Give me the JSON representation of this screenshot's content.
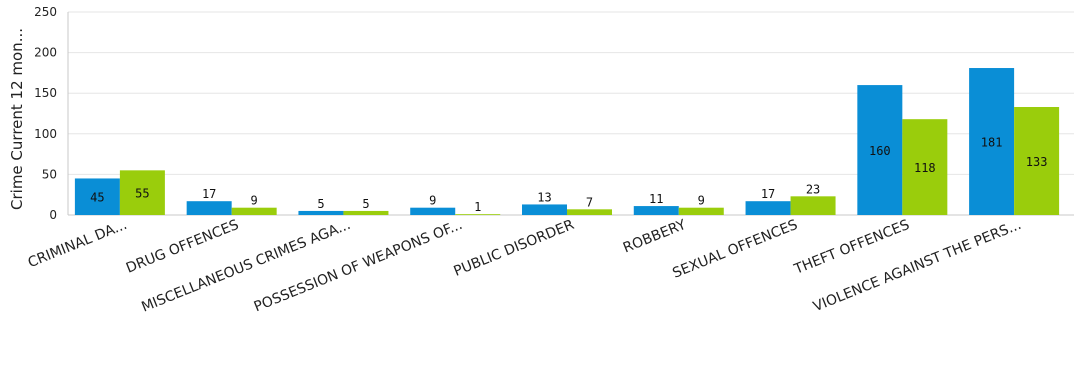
{
  "chart_data": {
    "type": "bar",
    "categories": [
      "CRIMINAL DA...",
      "DRUG OFFENCES",
      "MISCELLANEOUS CRIMES AGA...",
      "POSSESSION OF WEAPONS OF...",
      "PUBLIC DISORDER",
      "ROBBERY",
      "SEXUAL OFFENCES",
      "THEFT OFFENCES",
      "VIOLENCE AGAINST THE PERS..."
    ],
    "series": [
      {
        "values": [
          45,
          17,
          5,
          9,
          13,
          11,
          17,
          160,
          181
        ],
        "color": "#0A8ED6"
      },
      {
        "values": [
          55,
          9,
          5,
          1,
          7,
          9,
          23,
          118,
          133
        ],
        "color": "#9ACD0C"
      }
    ],
    "data_labels": {
      "series0": [
        "45",
        "17",
        "5",
        "9",
        "13",
        "11",
        "17",
        "160",
        "181"
      ],
      "series1": [
        "55",
        "9",
        "5",
        "1",
        "7",
        "9",
        "23",
        "118",
        "133"
      ]
    },
    "ylabel": "Crime Current 12 mon...",
    "yticks": [
      "0",
      "50",
      "100",
      "150",
      "200",
      "250"
    ],
    "ylim": [
      0,
      250
    ],
    "grid": true,
    "legend": "none",
    "gridline_color": "#E6E6E6",
    "axis_color": "#C8C8C8"
  }
}
